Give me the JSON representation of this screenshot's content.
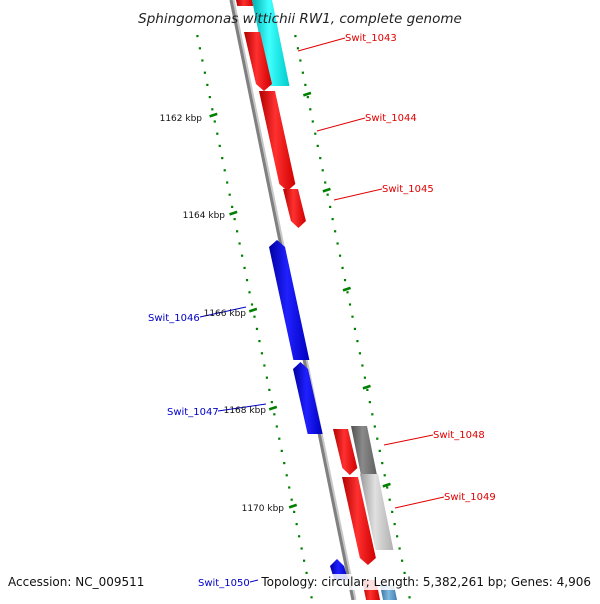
{
  "title": "Sphingomonas wittichii RW1, complete genome",
  "accession": "Accession: NC_009511",
  "info": "Topology: circular; Length: 5,382,261 bp; Genes: 4,906",
  "colors": {
    "forward_gene": "#ff0000",
    "reverse_gene": "#0000ff",
    "cyan_feature": "#00e5e5",
    "grey_feature": "#707070",
    "lightgrey_feature": "#b8b8b8",
    "tick": "#008000",
    "backbone": "#808080",
    "label_red": "#e00000",
    "label_blue": "#0000c8"
  },
  "ticks": [
    {
      "label": "1162 kbp"
    },
    {
      "label": "1164 kbp"
    },
    {
      "label": "1166 kbp"
    },
    {
      "label": "1168 kbp"
    },
    {
      "label": "1170 kbp"
    }
  ],
  "genes": [
    {
      "id": "Swit_1043",
      "strand": "+"
    },
    {
      "id": "Swit_1044",
      "strand": "+"
    },
    {
      "id": "Swit_1045",
      "strand": "+"
    },
    {
      "id": "Swit_1046",
      "strand": "-"
    },
    {
      "id": "Swit_1047",
      "strand": "-"
    },
    {
      "id": "Swit_1048",
      "strand": "+"
    },
    {
      "id": "Swit_1049",
      "strand": "+"
    },
    {
      "id": "Swit_1050",
      "strand": "-"
    }
  ]
}
